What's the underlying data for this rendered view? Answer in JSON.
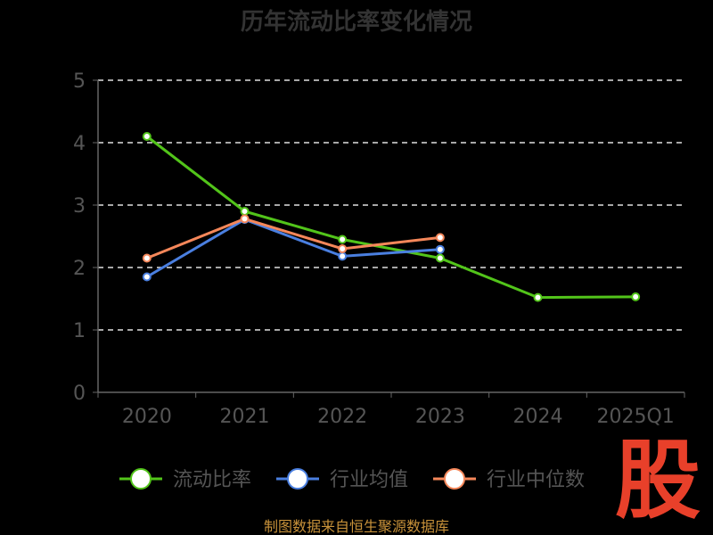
{
  "chart_data": {
    "type": "line",
    "title": "历年流动比率变化情况",
    "categories": [
      "2020",
      "2021",
      "2022",
      "2023",
      "2024",
      "2025Q1"
    ],
    "ylim": [
      0,
      5
    ],
    "yticks": [
      "0",
      "1",
      "2",
      "3",
      "4",
      "5"
    ],
    "grid": true,
    "legend_position": "bottom",
    "series": [
      {
        "name": "流动比率",
        "color": "#52c41a",
        "values": [
          4.1,
          2.9,
          2.45,
          2.15,
          1.52,
          1.53
        ]
      },
      {
        "name": "行业均值",
        "color": "#4a7fe0",
        "values": [
          1.85,
          2.77,
          2.18,
          2.29,
          null,
          null
        ]
      },
      {
        "name": "行业中位数",
        "color": "#f5875a",
        "values": [
          2.15,
          2.78,
          2.3,
          2.48,
          null,
          null
        ]
      }
    ]
  },
  "footer": {
    "source": "制图数据来自恒生聚源数据库"
  },
  "watermark": {
    "text": "股"
  }
}
